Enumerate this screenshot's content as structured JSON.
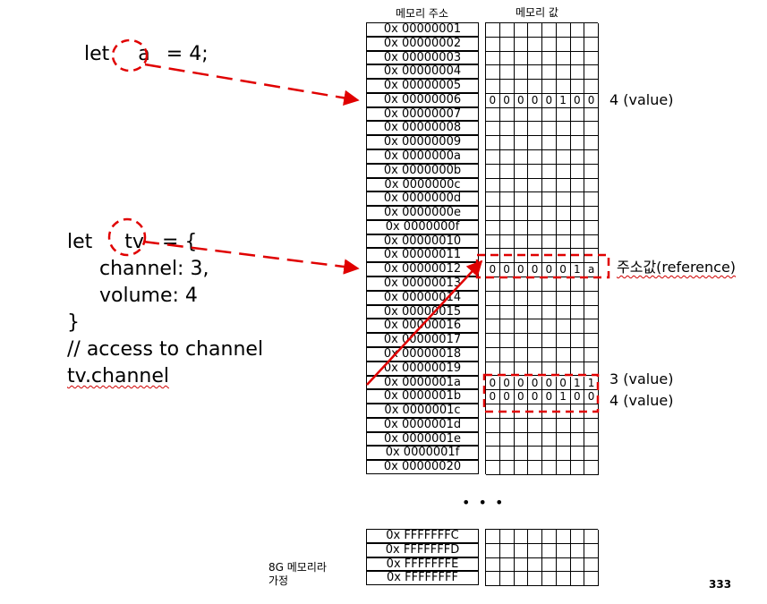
{
  "headers": {
    "address": "메모리 주소",
    "value": "메모리 값"
  },
  "code1": {
    "let": "let",
    "var": "a",
    "rest": "= 4;"
  },
  "code2": {
    "let": "let",
    "var": "tv",
    "rest": "= {",
    "line2": "channel: 3,",
    "line3": "volume: 4",
    "line4": "}",
    "line5": "// access to channel",
    "line6": "tv.channel"
  },
  "addresses": [
    "0x 00000001",
    "0x 00000002",
    "0x 00000003",
    "0x 00000004",
    "0x 00000005",
    "0x 00000006",
    "0x 00000007",
    "0x 00000008",
    "0x 00000009",
    "0x 0000000a",
    "0x 0000000b",
    "0x 0000000c",
    "0x 0000000d",
    "0x 0000000e",
    "0x 0000000f",
    "0x 00000010",
    "0x 00000011",
    "0x 00000012",
    "0x 00000013",
    "0x 00000014",
    "0x 00000015",
    "0x 00000016",
    "0x 00000017",
    "0x 00000018",
    "0x 00000019",
    "0x 0000001a",
    "0x 0000001b",
    "0x 0000001c",
    "0x 0000001d",
    "0x 0000001e",
    "0x 0000001f",
    "0x 00000020"
  ],
  "addresses_bottom": [
    "0x FFFFFFFC",
    "0x FFFFFFFD",
    "0x FFFFFFFE",
    "0x FFFFFFFF"
  ],
  "value_rows": [
    {
      "row": 5,
      "bits": [
        "0",
        "0",
        "0",
        "0",
        "0",
        "1",
        "0",
        "0"
      ]
    },
    {
      "row": 17,
      "bits": [
        "0",
        "0",
        "0",
        "0",
        "0",
        "0",
        "1",
        "a"
      ]
    },
    {
      "row": 25,
      "bits": [
        "0",
        "0",
        "0",
        "0",
        "0",
        "0",
        "1",
        "1"
      ]
    },
    {
      "row": 26,
      "bits": [
        "0",
        "0",
        "0",
        "0",
        "0",
        "1",
        "0",
        "0"
      ]
    }
  ],
  "labels": {
    "value_a": "4 (value)",
    "reference": "주소값(reference)",
    "value_channel": "3 (value)",
    "value_volume": "4 (value)"
  },
  "ellipsis": "• • •",
  "footnote_line1": "8G 메모리라",
  "footnote_line2": "가정",
  "page_number": "333",
  "colors": {
    "accent": "#e00000",
    "grid": "#000000"
  }
}
